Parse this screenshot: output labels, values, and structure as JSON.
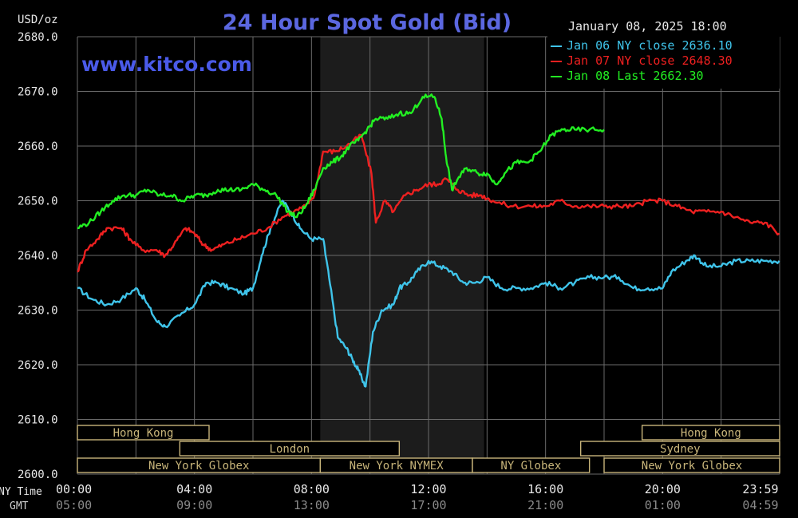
{
  "chart_data": {
    "type": "line",
    "title": "24 Hour Spot Gold (Bid)",
    "watermark": "www.kitco.com",
    "date_label": "January 08, 2025 18:00",
    "ylabel": "USD/oz",
    "ylim": [
      2600,
      2680
    ],
    "y_ticks": [
      "2680.0",
      "2670.0",
      "2660.0",
      "2650.0",
      "2640.0",
      "2630.0",
      "2620.0",
      "2610.0",
      "2600.0"
    ],
    "x_unit": "hours (NY time)",
    "xlim": [
      0,
      24
    ],
    "ny_time_label": "NY Time",
    "gmt_label": "GMT",
    "x_ticks": [
      {
        "h": 0,
        "ny": "00:00",
        "gmt": "05:00"
      },
      {
        "h": 4,
        "ny": "04:00",
        "gmt": "09:00"
      },
      {
        "h": 8,
        "ny": "08:00",
        "gmt": "13:00"
      },
      {
        "h": 12,
        "ny": "12:00",
        "gmt": "17:00"
      },
      {
        "h": 16,
        "ny": "16:00",
        "gmt": "21:00"
      },
      {
        "h": 20,
        "ny": "20:00",
        "gmt": "01:00"
      },
      {
        "h": 24,
        "ny": "23:59",
        "gmt": "04:59"
      }
    ],
    "shaded_hours": [
      8.3,
      13.9
    ],
    "legend_placement": "top-right",
    "grid": true,
    "series": [
      {
        "name": "Jan 06 NY close 2636.10",
        "color": "#3fc4ea",
        "points": [
          [
            0,
            2634
          ],
          [
            0.5,
            2632
          ],
          [
            1,
            2631
          ],
          [
            1.5,
            2632
          ],
          [
            2,
            2634
          ],
          [
            2.3,
            2632
          ],
          [
            2.7,
            2628
          ],
          [
            3,
            2627
          ],
          [
            3.5,
            2629
          ],
          [
            4,
            2631
          ],
          [
            4.4,
            2635
          ],
          [
            4.8,
            2635
          ],
          [
            5.2,
            2634
          ],
          [
            5.7,
            2633
          ],
          [
            6,
            2634
          ],
          [
            6.3,
            2640
          ],
          [
            6.6,
            2645
          ],
          [
            7,
            2650
          ],
          [
            7.3,
            2648
          ],
          [
            7.6,
            2645
          ],
          [
            8,
            2643
          ],
          [
            8.4,
            2643
          ],
          [
            8.6,
            2636
          ],
          [
            8.9,
            2625
          ],
          [
            9.2,
            2623
          ],
          [
            9.4,
            2621
          ],
          [
            9.6,
            2619
          ],
          [
            9.85,
            2616
          ],
          [
            10.1,
            2626
          ],
          [
            10.4,
            2630
          ],
          [
            10.8,
            2631
          ],
          [
            11,
            2634
          ],
          [
            11.3,
            2635
          ],
          [
            11.6,
            2637
          ],
          [
            12,
            2639
          ],
          [
            12.4,
            2638
          ],
          [
            12.8,
            2637
          ],
          [
            13.2,
            2635
          ],
          [
            13.6,
            2635
          ],
          [
            14,
            2636
          ],
          [
            14.5,
            2634
          ],
          [
            15,
            2634
          ],
          [
            15.5,
            2634
          ],
          [
            16,
            2635
          ],
          [
            16.5,
            2634
          ],
          [
            17,
            2635
          ],
          [
            17.5,
            2636
          ],
          [
            18,
            2636
          ],
          [
            18.5,
            2636
          ],
          [
            19,
            2634
          ],
          [
            19.5,
            2634
          ],
          [
            20,
            2634
          ],
          [
            20.3,
            2637
          ],
          [
            20.8,
            2639
          ],
          [
            21.1,
            2640
          ],
          [
            21.5,
            2638
          ],
          [
            22,
            2638
          ],
          [
            22.5,
            2639
          ],
          [
            23,
            2639
          ],
          [
            23.5,
            2639
          ],
          [
            23.99,
            2639
          ]
        ]
      },
      {
        "name": "Jan 07 NY close 2648.30",
        "color": "#ee2020",
        "points": [
          [
            0,
            2637
          ],
          [
            0.3,
            2641
          ],
          [
            0.7,
            2643
          ],
          [
            1,
            2645
          ],
          [
            1.5,
            2645
          ],
          [
            1.8,
            2643
          ],
          [
            2.2,
            2641
          ],
          [
            2.7,
            2641
          ],
          [
            3,
            2640
          ],
          [
            3.3,
            2642
          ],
          [
            3.7,
            2645
          ],
          [
            4,
            2644
          ],
          [
            4.3,
            2642
          ],
          [
            4.6,
            2641
          ],
          [
            5,
            2642
          ],
          [
            5.5,
            2643
          ],
          [
            6,
            2644
          ],
          [
            6.5,
            2645
          ],
          [
            7,
            2647
          ],
          [
            7.4,
            2648
          ],
          [
            7.8,
            2649
          ],
          [
            8.1,
            2651
          ],
          [
            8.4,
            2659
          ],
          [
            8.8,
            2659
          ],
          [
            9.2,
            2660
          ],
          [
            9.7,
            2662
          ],
          [
            10.05,
            2655
          ],
          [
            10.2,
            2646
          ],
          [
            10.5,
            2650
          ],
          [
            10.8,
            2648
          ],
          [
            11.2,
            2651
          ],
          [
            11.6,
            2652
          ],
          [
            12,
            2653
          ],
          [
            12.3,
            2653
          ],
          [
            12.6,
            2654
          ],
          [
            13,
            2652
          ],
          [
            13.4,
            2651
          ],
          [
            13.8,
            2651
          ],
          [
            14.2,
            2650
          ],
          [
            14.8,
            2649
          ],
          [
            15.5,
            2649
          ],
          [
            16,
            2649
          ],
          [
            16.5,
            2650
          ],
          [
            17,
            2649
          ],
          [
            17.5,
            2649
          ],
          [
            18,
            2649
          ],
          [
            18.5,
            2649
          ],
          [
            19,
            2649
          ],
          [
            19.5,
            2650
          ],
          [
            20,
            2650
          ],
          [
            20.5,
            2649
          ],
          [
            21,
            2648
          ],
          [
            21.5,
            2648
          ],
          [
            22,
            2648
          ],
          [
            22.5,
            2647
          ],
          [
            23,
            2646
          ],
          [
            23.5,
            2646
          ],
          [
            23.99,
            2644
          ]
        ]
      },
      {
        "name": "Jan 08 Last 2662.30",
        "color": "#22ee22",
        "points": [
          [
            0,
            2645
          ],
          [
            0.4,
            2646
          ],
          [
            0.8,
            2648
          ],
          [
            1.2,
            2650
          ],
          [
            1.6,
            2651
          ],
          [
            2,
            2651
          ],
          [
            2.4,
            2652
          ],
          [
            2.8,
            2651
          ],
          [
            3.2,
            2651
          ],
          [
            3.6,
            2650
          ],
          [
            4,
            2651
          ],
          [
            4.4,
            2651
          ],
          [
            4.8,
            2652
          ],
          [
            5.2,
            2652
          ],
          [
            5.6,
            2652
          ],
          [
            6,
            2653
          ],
          [
            6.4,
            2652
          ],
          [
            6.8,
            2651
          ],
          [
            7.2,
            2648
          ],
          [
            7.5,
            2647
          ],
          [
            7.8,
            2649
          ],
          [
            8.1,
            2652
          ],
          [
            8.4,
            2656
          ],
          [
            8.7,
            2657
          ],
          [
            9,
            2658
          ],
          [
            9.3,
            2660
          ],
          [
            9.6,
            2661
          ],
          [
            9.9,
            2663
          ],
          [
            10.2,
            2665
          ],
          [
            10.6,
            2665
          ],
          [
            11,
            2666
          ],
          [
            11.4,
            2666
          ],
          [
            11.8,
            2669
          ],
          [
            12.2,
            2669
          ],
          [
            12.45,
            2665
          ],
          [
            12.6,
            2658
          ],
          [
            12.8,
            2652
          ],
          [
            13,
            2654
          ],
          [
            13.3,
            2656
          ],
          [
            13.7,
            2655
          ],
          [
            14,
            2655
          ],
          [
            14.3,
            2653
          ],
          [
            14.6,
            2655
          ],
          [
            15,
            2657
          ],
          [
            15.4,
            2657
          ],
          [
            15.8,
            2659
          ],
          [
            16.2,
            2662
          ],
          [
            16.6,
            2663
          ],
          [
            17,
            2663
          ],
          [
            17.5,
            2663
          ],
          [
            18,
            2663
          ]
        ]
      }
    ],
    "sessions": [
      {
        "label": "Hong Kong",
        "row": 0,
        "start": 0,
        "end": 4.5
      },
      {
        "label": "Hong Kong",
        "row": 0,
        "start": 19.3,
        "end": 24
      },
      {
        "label": "London",
        "row": 1,
        "start": 3.5,
        "end": 11
      },
      {
        "label": "Sydney",
        "row": 1,
        "start": 17.2,
        "end": 24
      },
      {
        "label": "New York Globex",
        "row": 2,
        "start": 0,
        "end": 8.3
      },
      {
        "label": "New York NYMEX",
        "row": 2,
        "start": 8.3,
        "end": 13.5
      },
      {
        "label": "NY Globex",
        "row": 2,
        "start": 13.5,
        "end": 17.5
      },
      {
        "label": "New York Globex",
        "row": 2,
        "start": 18,
        "end": 24
      }
    ]
  }
}
